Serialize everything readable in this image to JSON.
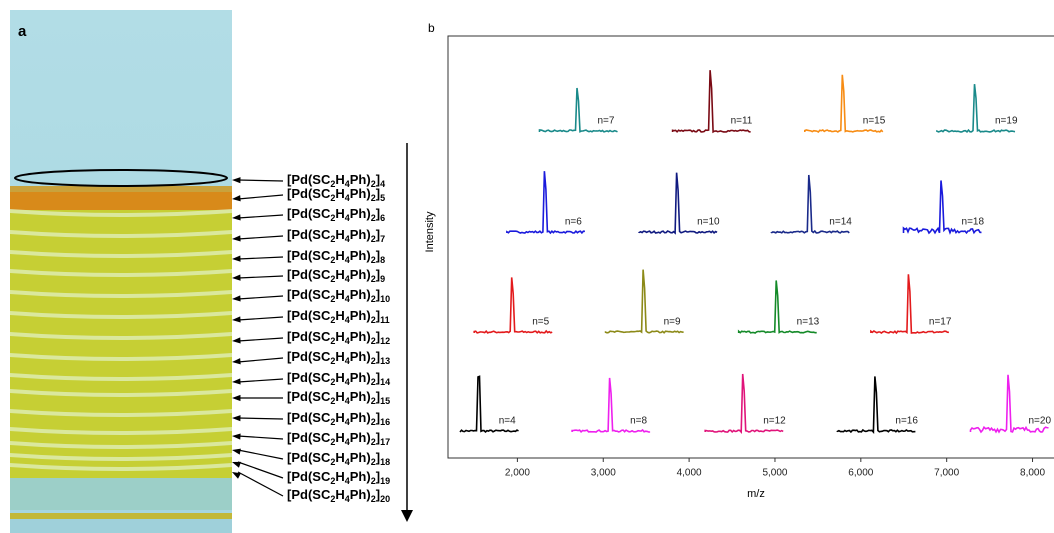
{
  "panel_a": {
    "label": "a",
    "labels": [
      "[Pd(SC2H4Ph)2]4",
      "[Pd(SC2H4Ph)2]5",
      "[Pd(SC2H4Ph)2]6",
      "[Pd(SC2H4Ph)2]7",
      "[Pd(SC2H4Ph)2]8",
      "[Pd(SC2H4Ph)2]9",
      "[Pd(SC2H4Ph)2]10",
      "[Pd(SC2H4Ph)2]11",
      "[Pd(SC2H4Ph)2]12",
      "[Pd(SC2H4Ph)2]13",
      "[Pd(SC2H4Ph)2]14",
      "[Pd(SC2H4Ph)2]15",
      "[Pd(SC2H4Ph)2]16",
      "[Pd(SC2H4Ph)2]17",
      "[Pd(SC2H4Ph)2]18",
      "[Pd(SC2H4Ph)2]19",
      "[Pd(SC2H4Ph)2]20"
    ]
  },
  "chart_data": {
    "type": "spectra",
    "panel_label": "b",
    "x_label": "m/z",
    "y_label": "Intensity",
    "xlim": [
      1250,
      8250
    ],
    "xticks": [
      {
        "value": 2000,
        "label": "2,000"
      },
      {
        "value": 3000,
        "label": "3,000"
      },
      {
        "value": 4000,
        "label": "4,000"
      },
      {
        "value": 5000,
        "label": "5,000"
      },
      {
        "value": 6000,
        "label": "6,000"
      },
      {
        "value": 7000,
        "label": "7,000"
      },
      {
        "value": 8000,
        "label": "8,000"
      }
    ],
    "series": [
      {
        "name": "n=4",
        "color": "#000000",
        "x": 1550
      },
      {
        "name": "n=5",
        "color": "#e31a1c",
        "x": 1940
      },
      {
        "name": "n=6",
        "color": "#1a1adc",
        "x": 2320
      },
      {
        "name": "n=7",
        "color": "#1a8a8a",
        "x": 2700
      },
      {
        "name": "n=8",
        "color": "#ee20ee",
        "x": 3080
      },
      {
        "name": "n=9",
        "color": "#8c8a18",
        "x": 3470
      },
      {
        "name": "n=10",
        "color": "#101a80",
        "x": 3860
      },
      {
        "name": "n=11",
        "color": "#7a0a14",
        "x": 4250
      },
      {
        "name": "n=12",
        "color": "#e0147a",
        "x": 4630
      },
      {
        "name": "n=13",
        "color": "#148a28",
        "x": 5020
      },
      {
        "name": "n=14",
        "color": "#1a2a8a",
        "x": 5400
      },
      {
        "name": "n=15",
        "color": "#f78c14",
        "x": 5790
      },
      {
        "name": "n=16",
        "color": "#000000",
        "x": 6170
      },
      {
        "name": "n=17",
        "color": "#e31a1c",
        "x": 6560
      },
      {
        "name": "n=18",
        "color": "#1a1adc",
        "x": 6940
      },
      {
        "name": "n=19",
        "color": "#1a8a8a",
        "x": 7330
      },
      {
        "name": "n=20",
        "color": "#ee20ee",
        "x": 7720
      }
    ]
  }
}
